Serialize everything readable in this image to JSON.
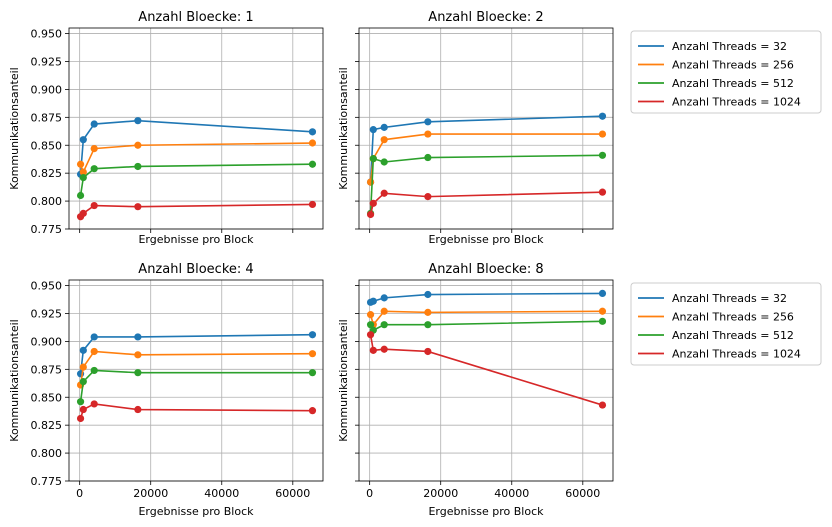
{
  "chart_data": [
    {
      "type": "line",
      "title": "Anzahl Bloecke: 1",
      "xlabel": "Ergebnisse pro Block",
      "ylabel": "Kommunikationsanteil",
      "xlim": [
        -3000,
        68500
      ],
      "ylim": [
        0.775,
        0.955
      ],
      "x": [
        256,
        1024,
        4096,
        16384,
        65536
      ],
      "series": [
        {
          "name": "Anzahl Threads = 32",
          "color": "#1f77b4",
          "values": [
            0.824,
            0.855,
            0.869,
            0.872,
            0.862
          ]
        },
        {
          "name": "Anzahl Threads = 256",
          "color": "#ff7f0e",
          "values": [
            0.833,
            0.826,
            0.847,
            0.85,
            0.852
          ]
        },
        {
          "name": "Anzahl Threads = 512",
          "color": "#2ca02c",
          "values": [
            0.805,
            0.821,
            0.829,
            0.831,
            0.833
          ]
        },
        {
          "name": "Anzahl Threads = 1024",
          "color": "#d62728",
          "values": [
            0.786,
            0.789,
            0.796,
            0.795,
            0.797
          ]
        }
      ]
    },
    {
      "type": "line",
      "title": "Anzahl Bloecke: 2",
      "xlabel": "Ergebnisse pro Block",
      "ylabel": "Kommunikationsanteil",
      "xlim": [
        -3000,
        68500
      ],
      "ylim": [
        0.775,
        0.955
      ],
      "x": [
        256,
        1024,
        4096,
        16384,
        65536
      ],
      "series": [
        {
          "name": "Anzahl Threads = 32",
          "color": "#1f77b4",
          "values": [
            0.817,
            0.864,
            0.866,
            0.871,
            0.876
          ]
        },
        {
          "name": "Anzahl Threads = 256",
          "color": "#ff7f0e",
          "values": [
            0.817,
            0.838,
            0.855,
            0.86,
            0.86
          ]
        },
        {
          "name": "Anzahl Threads = 512",
          "color": "#2ca02c",
          "values": [
            0.789,
            0.838,
            0.835,
            0.839,
            0.841
          ]
        },
        {
          "name": "Anzahl Threads = 1024",
          "color": "#d62728",
          "values": [
            0.788,
            0.798,
            0.807,
            0.804,
            0.808
          ]
        }
      ]
    },
    {
      "type": "line",
      "title": "Anzahl Bloecke: 4",
      "xlabel": "Ergebnisse pro Block",
      "ylabel": "Kommunikationsanteil",
      "xlim": [
        -3000,
        68500
      ],
      "ylim": [
        0.775,
        0.955
      ],
      "x": [
        256,
        1024,
        4096,
        16384,
        65536
      ],
      "series": [
        {
          "name": "Anzahl Threads = 32",
          "color": "#1f77b4",
          "values": [
            0.871,
            0.892,
            0.904,
            0.904,
            0.906
          ]
        },
        {
          "name": "Anzahl Threads = 256",
          "color": "#ff7f0e",
          "values": [
            0.861,
            0.877,
            0.891,
            0.888,
            0.889
          ]
        },
        {
          "name": "Anzahl Threads = 512",
          "color": "#2ca02c",
          "values": [
            0.846,
            0.864,
            0.874,
            0.872,
            0.872
          ]
        },
        {
          "name": "Anzahl Threads = 1024",
          "color": "#d62728",
          "values": [
            0.831,
            0.839,
            0.844,
            0.839,
            0.838
          ]
        }
      ]
    },
    {
      "type": "line",
      "title": "Anzahl Bloecke: 8",
      "xlabel": "Ergebnisse pro Block",
      "ylabel": "Kommunikationsanteil",
      "xlim": [
        -3000,
        68500
      ],
      "ylim": [
        0.775,
        0.955
      ],
      "x": [
        256,
        1024,
        4096,
        16384,
        65536
      ],
      "series": [
        {
          "name": "Anzahl Threads = 32",
          "color": "#1f77b4",
          "values": [
            0.935,
            0.936,
            0.939,
            0.942,
            0.943
          ]
        },
        {
          "name": "Anzahl Threads = 256",
          "color": "#ff7f0e",
          "values": [
            0.924,
            0.915,
            0.927,
            0.926,
            0.927
          ]
        },
        {
          "name": "Anzahl Threads = 512",
          "color": "#2ca02c",
          "values": [
            0.915,
            0.91,
            0.915,
            0.915,
            0.918
          ]
        },
        {
          "name": "Anzahl Threads = 1024",
          "color": "#d62728",
          "values": [
            0.906,
            0.892,
            0.893,
            0.891,
            0.843
          ]
        }
      ]
    }
  ],
  "axes": {
    "xticks": [
      0,
      20000,
      40000,
      60000
    ],
    "xtick_labels": [
      "0",
      "20000",
      "40000",
      "60000"
    ],
    "yticks": [
      0.775,
      0.8,
      0.825,
      0.85,
      0.875,
      0.9,
      0.925,
      0.95
    ],
    "ytick_labels": [
      "0.775",
      "0.800",
      "0.825",
      "0.850",
      "0.875",
      "0.900",
      "0.925",
      "0.950"
    ],
    "grid": true,
    "sharey_across_rows": true,
    "x_ticklabels_bottom_row_only": true,
    "y_ticklabels_left_column_only": true
  },
  "legend": {
    "placement": "right of right column, top of each row",
    "entries": [
      "Anzahl Threads = 32",
      "Anzahl Threads = 256",
      "Anzahl Threads = 512",
      "Anzahl Threads = 1024"
    ],
    "colors": [
      "#1f77b4",
      "#ff7f0e",
      "#2ca02c",
      "#d62728"
    ]
  }
}
